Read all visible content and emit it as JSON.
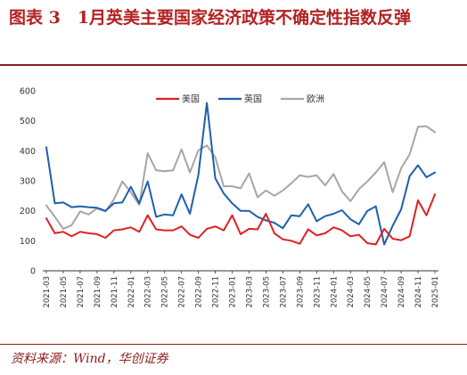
{
  "header": {
    "title": "图表 3　1月英美主要国家经济政策不确定性指数反弹"
  },
  "footer": {
    "source": "资料来源：Wind，华创证券"
  },
  "colors": {
    "us": "#e02020",
    "uk": "#1f5fae",
    "eu": "#a6a6a6",
    "title": "#b22222"
  },
  "chart_data": {
    "type": "line",
    "title": "",
    "xlabel": "",
    "ylabel": "",
    "ylim": [
      0,
      600
    ],
    "yticks": [
      0,
      100,
      200,
      300,
      400,
      500,
      600
    ],
    "grid": false,
    "legend_position": "top-center",
    "x": [
      "2021-03",
      "2021-04",
      "2021-05",
      "2021-06",
      "2021-07",
      "2021-08",
      "2021-09",
      "2021-10",
      "2021-11",
      "2021-12",
      "2022-01",
      "2022-02",
      "2022-03",
      "2022-04",
      "2022-05",
      "2022-06",
      "2022-07",
      "2022-08",
      "2022-09",
      "2022-10",
      "2022-11",
      "2022-12",
      "2023-01",
      "2023-02",
      "2023-03",
      "2023-04",
      "2023-05",
      "2023-06",
      "2023-07",
      "2023-08",
      "2023-09",
      "2023-10",
      "2023-11",
      "2023-12",
      "2024-01",
      "2024-02",
      "2024-03",
      "2024-04",
      "2024-05",
      "2024-06",
      "2024-07",
      "2024-08",
      "2024-09",
      "2024-10",
      "2024-11",
      "2024-12",
      "2025-01"
    ],
    "xtick_labels": [
      "2021-03",
      "2021-05",
      "2021-07",
      "2021-09",
      "2021-11",
      "2022-01",
      "2022-03",
      "2022-05",
      "2022-07",
      "2022-09",
      "2022-11",
      "2023-01",
      "2023-03",
      "2023-05",
      "2023-07",
      "2023-09",
      "2023-11",
      "2024-01",
      "2024-03",
      "2024-05",
      "2024-07",
      "2024-09",
      "2024-11",
      "2025-01"
    ],
    "series": [
      {
        "name": "美国",
        "color": "#e02020",
        "values": [
          175,
          125,
          130,
          115,
          130,
          125,
          122,
          110,
          135,
          138,
          145,
          130,
          185,
          138,
          135,
          135,
          148,
          120,
          110,
          140,
          148,
          135,
          185,
          122,
          140,
          138,
          190,
          125,
          105,
          100,
          90,
          138,
          118,
          125,
          145,
          135,
          115,
          120,
          92,
          88,
          140,
          107,
          102,
          115,
          235,
          185,
          255
        ]
      },
      {
        "name": "英国",
        "color": "#1f5fae",
        "values": [
          412,
          225,
          228,
          212,
          215,
          212,
          210,
          200,
          225,
          228,
          280,
          225,
          298,
          180,
          188,
          185,
          255,
          190,
          320,
          560,
          308,
          258,
          225,
          200,
          200,
          180,
          168,
          160,
          142,
          185,
          182,
          222,
          165,
          182,
          190,
          202,
          172,
          155,
          200,
          215,
          88,
          150,
          205,
          315,
          352,
          312,
          328
        ]
      },
      {
        "name": "欧洲",
        "color": "#a6a6a6",
        "values": [
          218,
          180,
          140,
          152,
          198,
          188,
          208,
          198,
          238,
          298,
          262,
          220,
          392,
          335,
          332,
          335,
          405,
          328,
          402,
          418,
          378,
          282,
          282,
          275,
          325,
          245,
          268,
          250,
          268,
          292,
          318,
          313,
          318,
          285,
          323,
          265,
          232,
          272,
          298,
          328,
          362,
          262,
          342,
          388,
          480,
          482,
          462
        ]
      }
    ]
  }
}
